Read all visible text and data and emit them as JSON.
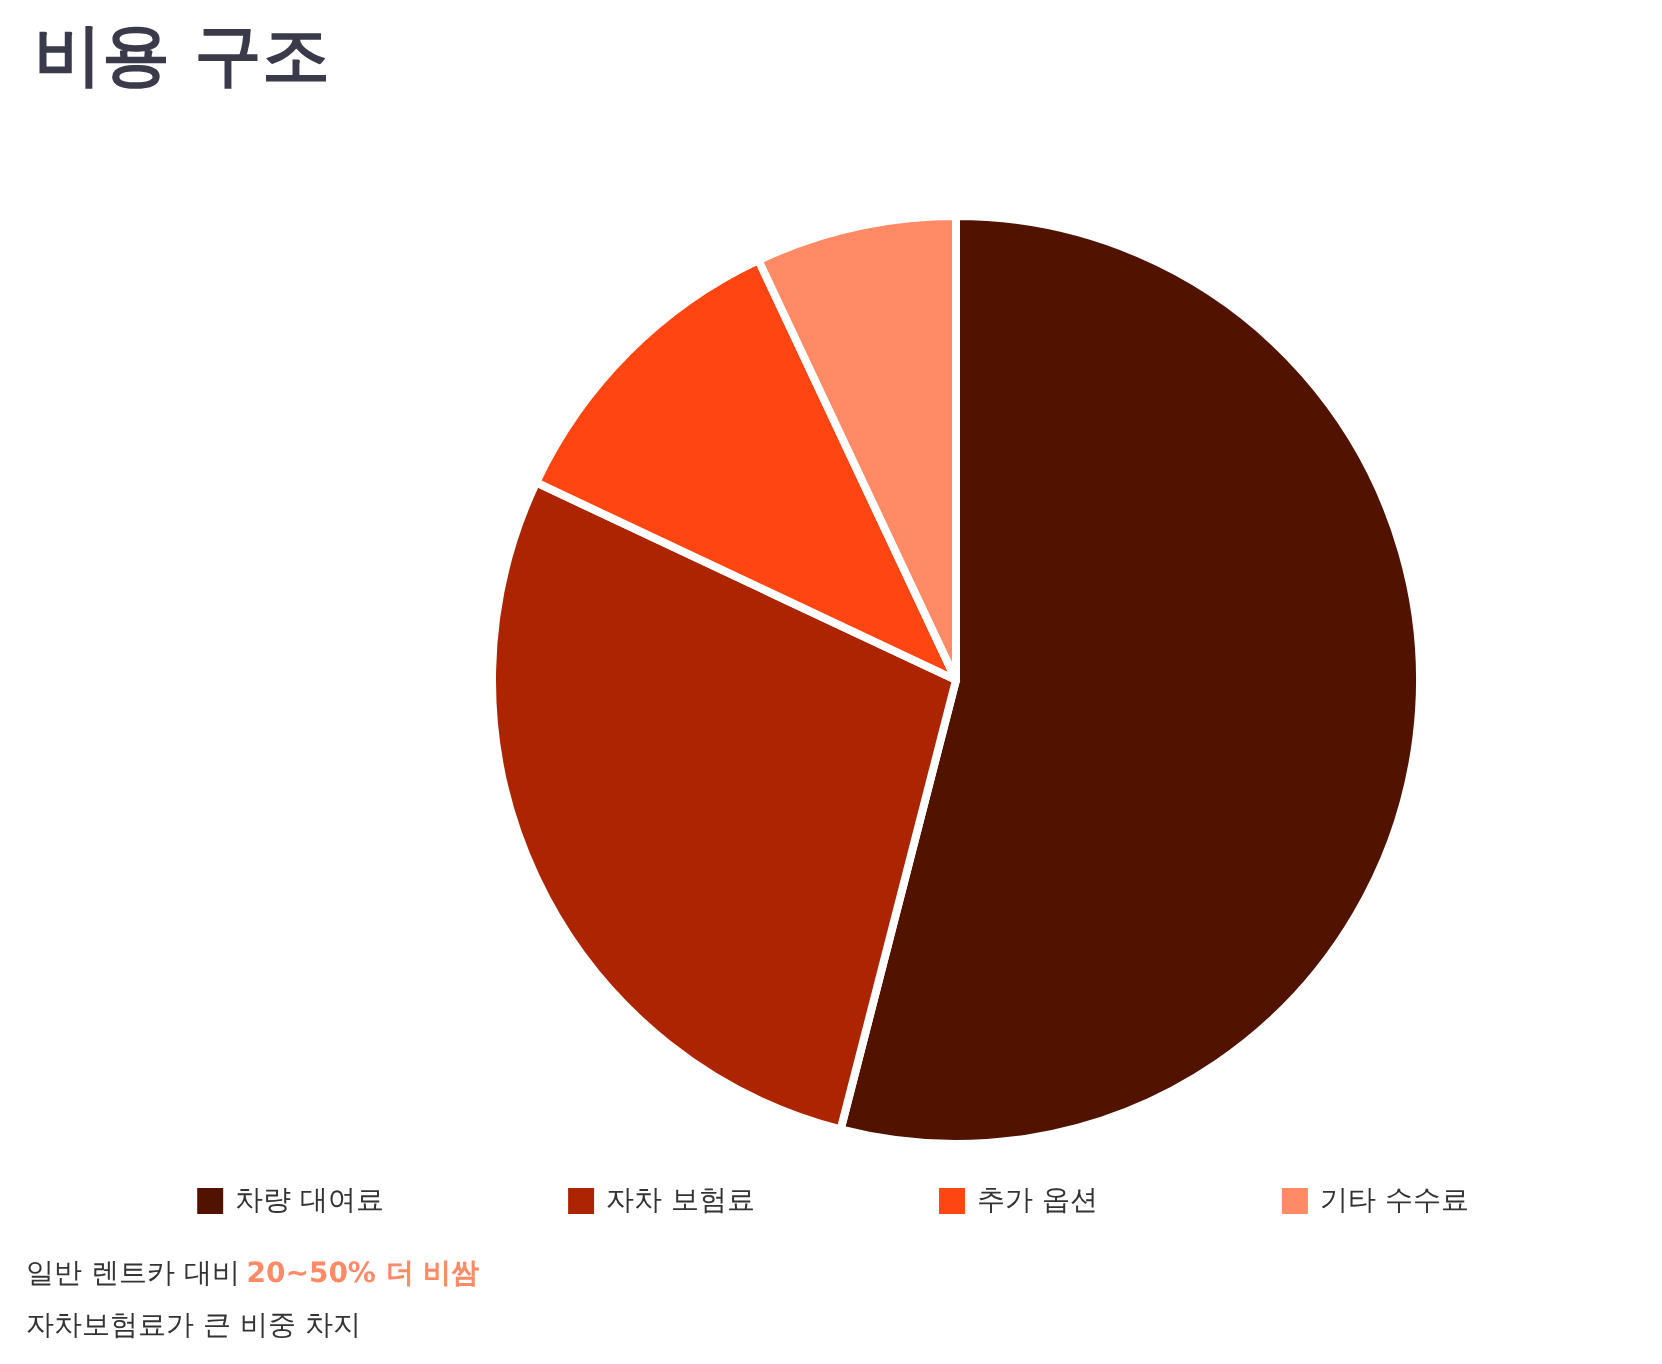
{
  "chart_data": {
    "type": "pie",
    "title": "비용 구조",
    "categories": [
      "차량 대여료",
      "자차 보험료",
      "추가 옵션",
      "기타 수수료"
    ],
    "values": [
      54,
      28,
      11,
      7
    ],
    "colors": [
      "#521200",
      "#ad2500",
      "#ff4511",
      "#ff8a65"
    ],
    "legend": "bottom",
    "annotations": [
      "일반 렌트카 대비",
      "20~50% 더 비쌈",
      "자차보험료가 큰 비중 차지"
    ]
  }
}
